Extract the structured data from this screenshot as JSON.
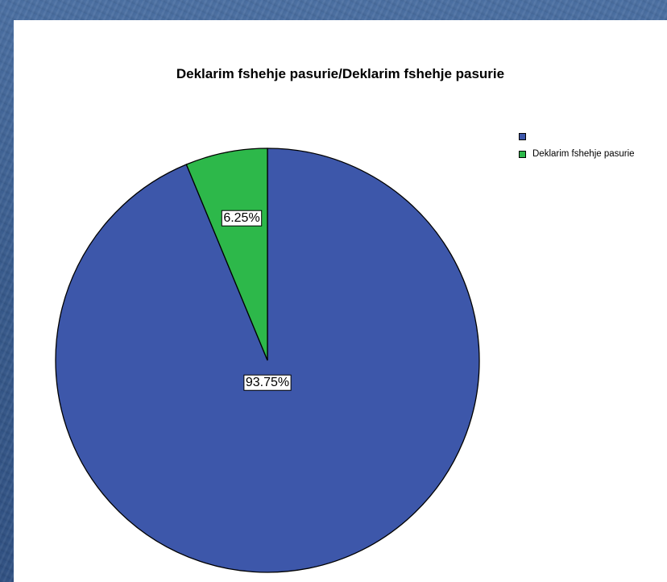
{
  "chart_data": {
    "type": "pie",
    "title": "Deklarim fshehje pasurie/Deklarim fshehje pasurie",
    "categories": [
      "",
      "Deklarim fshehje pasurie"
    ],
    "values": [
      93.75,
      6.25
    ],
    "labels": [
      "93.75%",
      "6.25%"
    ],
    "colors": [
      "#3d57aa",
      "#2db84a"
    ],
    "legend_position": "top-right"
  }
}
